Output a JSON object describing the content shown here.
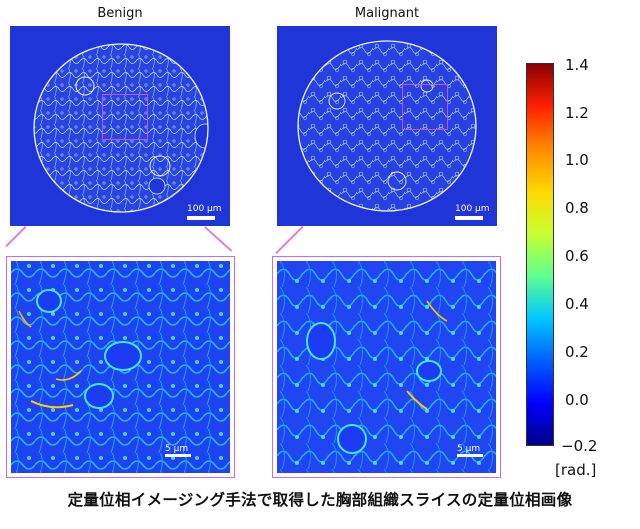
{
  "panels": {
    "left_title": "Benign",
    "right_title": "Malignant",
    "overview_scale_label": "100 μm",
    "zoom_scale_label": "5 μm"
  },
  "colorbar": {
    "ticks": [
      "1.4",
      "1.2",
      "1.0",
      "0.8",
      "0.6",
      "0.4",
      "0.2",
      "0.0",
      "−0.2"
    ],
    "unit": "[rad.]",
    "range": [
      -0.2,
      1.4
    ],
    "colors": [
      "#00008a",
      "#0000ff",
      "#0060ff",
      "#00c8ff",
      "#60ff90",
      "#c8ff30",
      "#ffd700",
      "#ff8a00",
      "#ff2000",
      "#8a0000"
    ]
  },
  "caption": "定量位相イメージング手法で取得した胸部組織スライスの定量位相画像",
  "colors": {
    "background_blue": "#1f35d8",
    "roi_magenta": "#d04fd0"
  }
}
